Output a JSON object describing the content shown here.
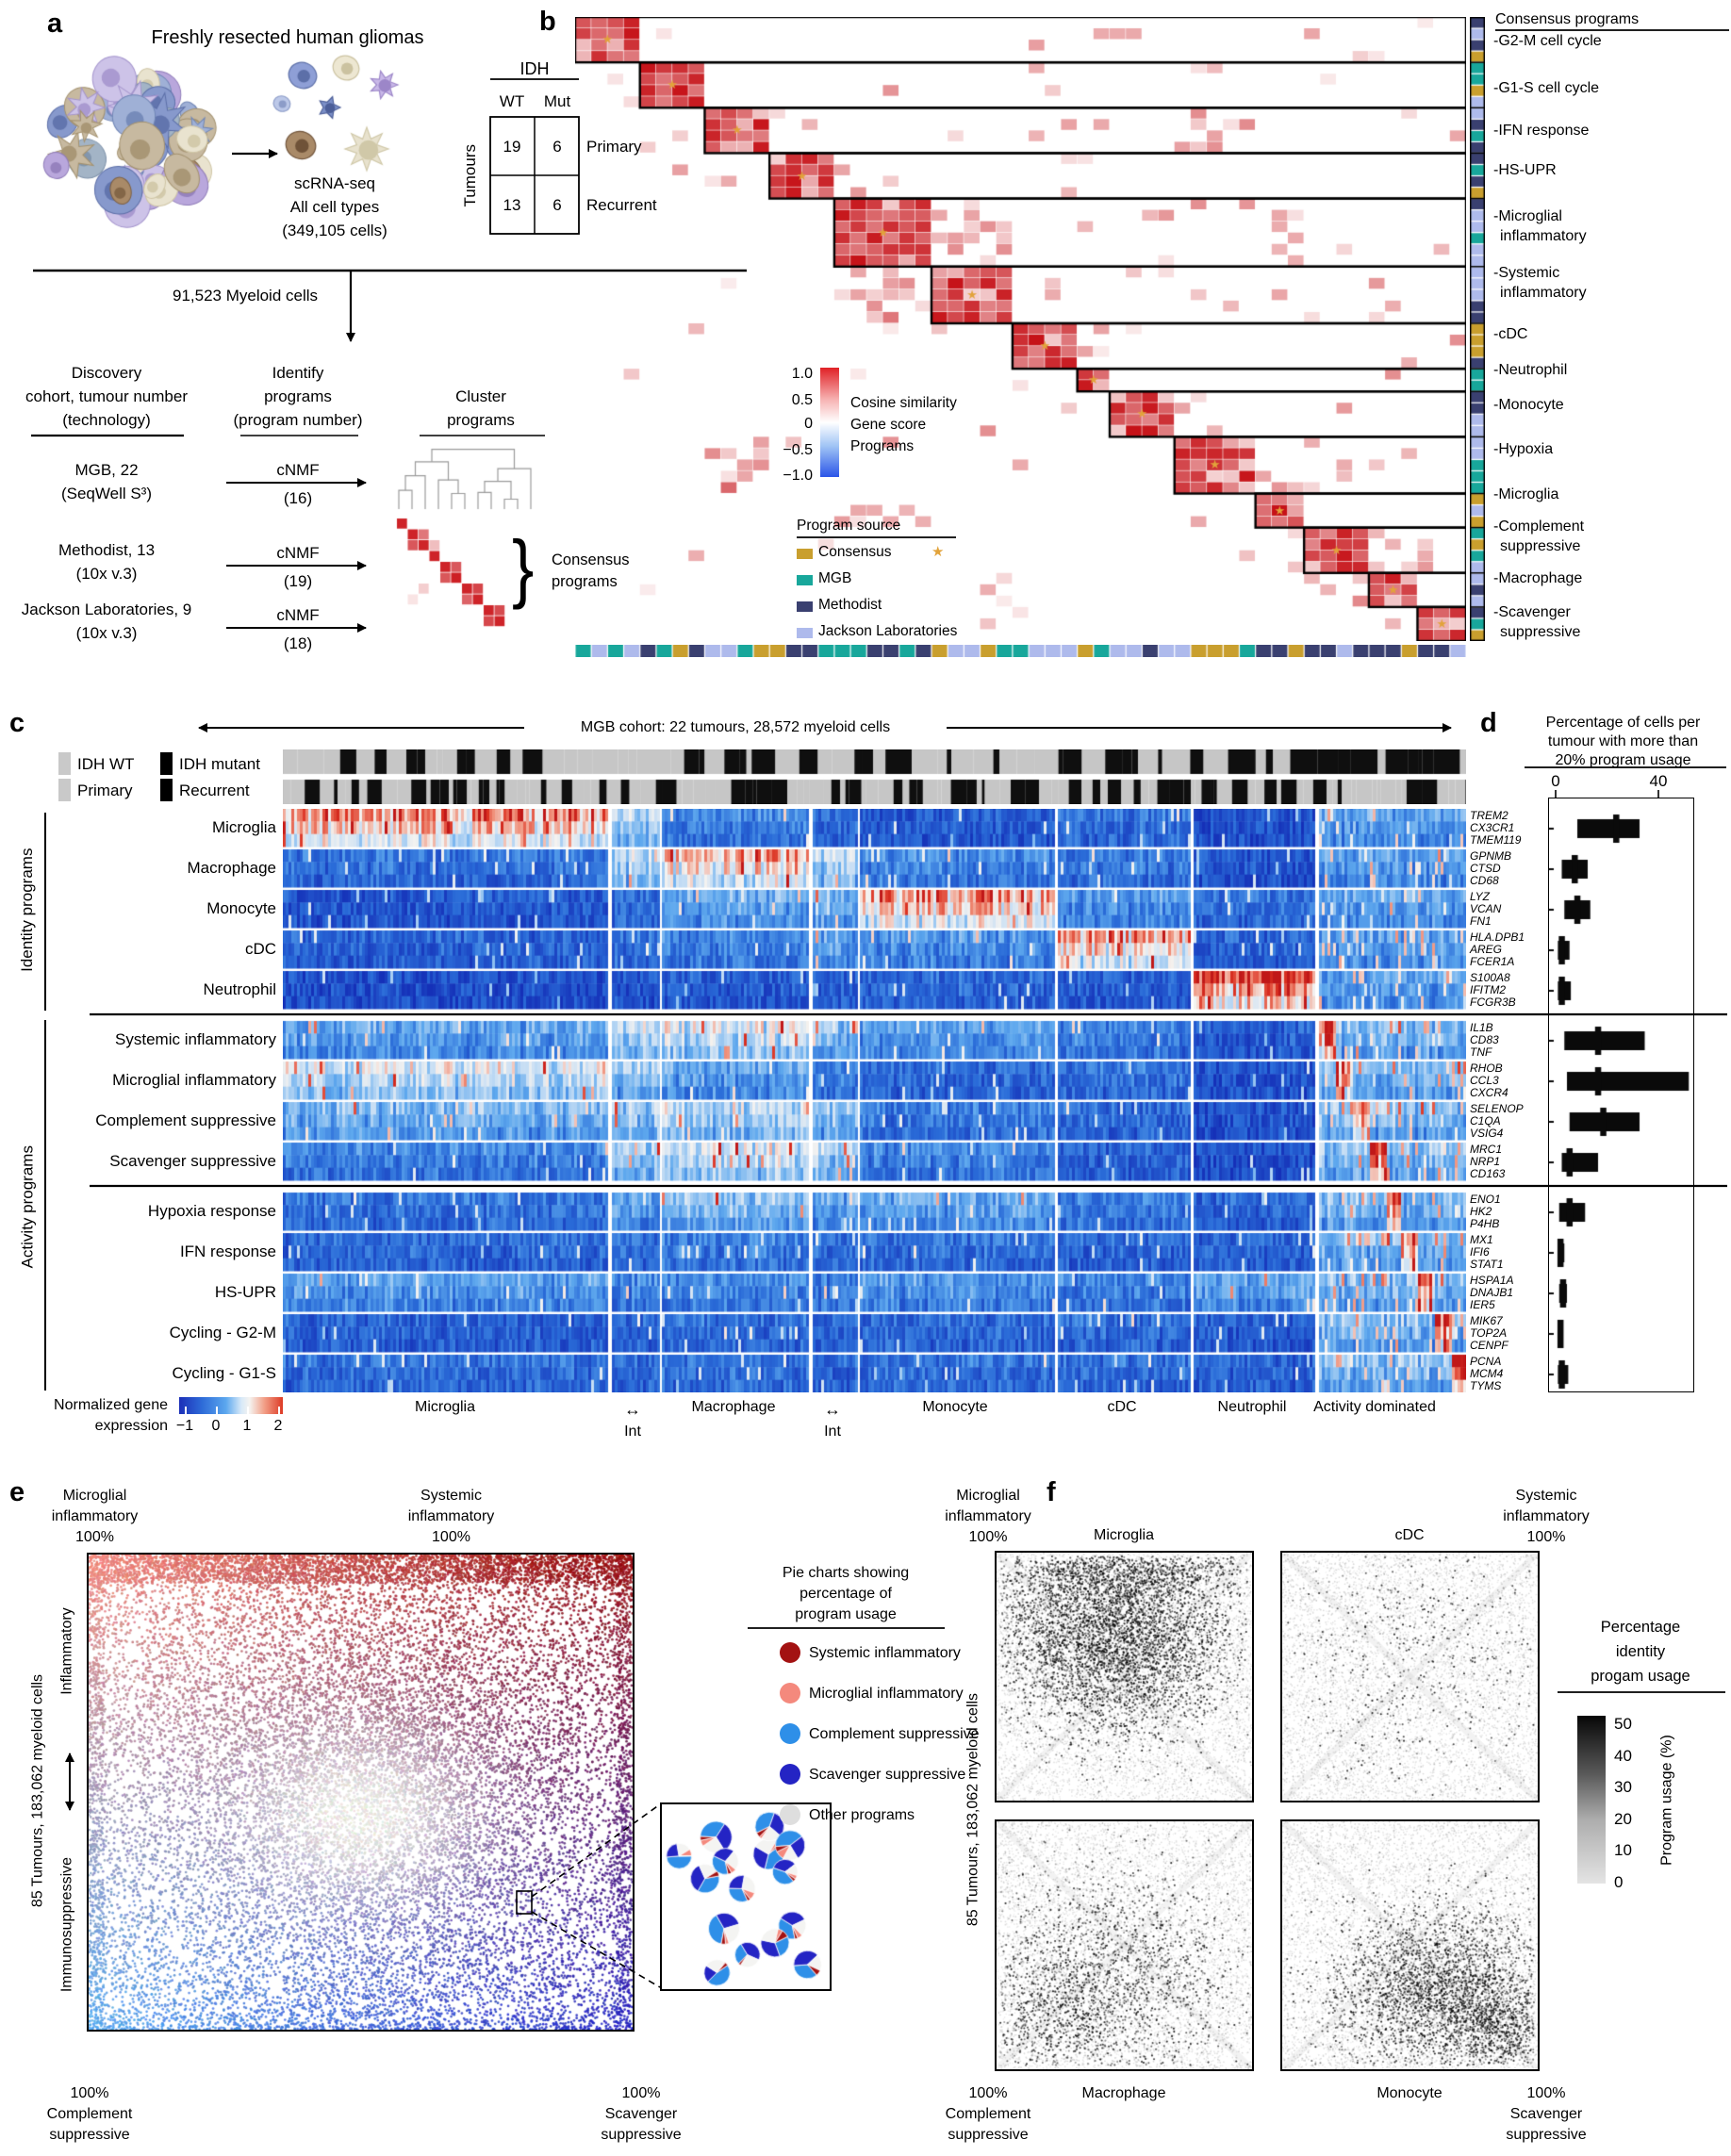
{
  "panel_a": {
    "label": "a",
    "title": "Freshly resected human gliomas",
    "scrna_lines": [
      "scRNA-seq",
      "All cell types",
      "(349,105 cells)"
    ],
    "table": {
      "header": "IDH",
      "cols": [
        "WT",
        "Mut"
      ],
      "row_axis": "Tumours",
      "rows": [
        {
          "wt": "19",
          "mut": "6",
          "type": "Primary"
        },
        {
          "wt": "13",
          "mut": "6",
          "type": "Recurrent"
        }
      ]
    },
    "myeloid_note": "91,523 Myeloid cells",
    "columns": {
      "discovery": [
        "Discovery",
        "cohort, tumour number",
        "(technology)"
      ],
      "identify": [
        "Identify",
        "programs",
        "(program number)"
      ],
      "cluster": [
        "Cluster",
        "programs"
      ]
    },
    "cohorts": [
      {
        "name": "MGB, 22",
        "tech": "(SeqWell S³)",
        "method": "cNMF",
        "programs": "(16)"
      },
      {
        "name": "Methodist, 13",
        "tech": "(10x v.3)",
        "method": "cNMF",
        "programs": "(19)"
      },
      {
        "name": "Jackson Laboratories, 9",
        "tech": "(10x v.3)",
        "method": "cNMF",
        "programs": "(18)"
      }
    ],
    "consensus_label": [
      "Consensus",
      "programs"
    ]
  },
  "panel_b": {
    "label": "b",
    "colorbar": {
      "ticks": [
        "1.0",
        "0.5",
        "0",
        "−0.5",
        "−1.0"
      ],
      "lines": [
        "Cosine similarity",
        "Gene score",
        "Programs"
      ]
    },
    "source_legend": {
      "title": "Program source",
      "items": [
        {
          "label": "Consensus",
          "color": "#C99F2E"
        },
        {
          "label": "MGB",
          "color": "#18A79B"
        },
        {
          "label": "Methodist",
          "color": "#3A4070"
        },
        {
          "label": "Jackson Laboratories",
          "color": "#AEBAEC"
        }
      ]
    },
    "star_color": "#E2A33B",
    "heat_color": "#CB181D",
    "consensus_header": "Consensus programs",
    "programs": [
      "G2-M cell cycle",
      "G1-S cell cycle",
      "IFN response",
      "HS-UPR",
      "Microglial inflammatory",
      "Systemic inflammatory",
      "cDC",
      "Neutrophil",
      "Monocyte",
      "Hypoxia",
      "Microglia",
      "Complement suppressive",
      "Macrophage",
      "Scavenger suppressive"
    ]
  },
  "panel_c": {
    "label": "c",
    "title": "MGB cohort: 22 tumours, 28,572 myeloid cells",
    "status_legend": [
      {
        "label": "IDH WT",
        "color": "#C9C9C9"
      },
      {
        "label": "IDH mutant",
        "color": "#000000"
      },
      {
        "label": "Primary",
        "color": "#C9C9C9"
      },
      {
        "label": "Recurrent",
        "color": "#000000"
      }
    ],
    "row_groups": [
      "Identity programs",
      "Activity programs"
    ],
    "rows": [
      "Microglia",
      "Macrophage",
      "Monocyte",
      "cDC",
      "Neutrophil",
      "Systemic inflammatory",
      "Microglial inflammatory",
      "Complement suppressive",
      "Scavenger suppressive",
      "Hypoxia response",
      "IFN response",
      "HS-UPR",
      "Cycling - G2-M",
      "Cycling - G1-S"
    ],
    "genes": [
      [
        "TREM2",
        "CX3CR1",
        "TMEM119"
      ],
      [
        "GPNMB",
        "CTSD",
        "CD68"
      ],
      [
        "LYZ",
        "VCAN",
        "FN1"
      ],
      [
        "HLA.DPB1",
        "AREG",
        "FCER1A"
      ],
      [
        "S100A8",
        "IFITM2",
        "FCGR3B"
      ],
      [
        "IL1B",
        "CD83",
        "TNF"
      ],
      [
        "RHOB",
        "CCL3",
        "CXCR4"
      ],
      [
        "SELENOP",
        "C1QA",
        "VSIG4"
      ],
      [
        "MRC1",
        "NRP1",
        "CD163"
      ],
      [
        "ENO1",
        "HK2",
        "P4HB"
      ],
      [
        "MX1",
        "IFI6",
        "STAT1"
      ],
      [
        "HSPA1A",
        "DNAJB1",
        "IER5"
      ],
      [
        "MIK67",
        "TOP2A",
        "CENPF"
      ],
      [
        "PCNA",
        "MCM4",
        "TYMS"
      ]
    ],
    "col_groups": [
      "Microglia",
      "Int",
      "Macrophage",
      "Int",
      "Monocyte",
      "cDC",
      "Neutrophil",
      "Activity dominated"
    ],
    "colorbar": {
      "label_lines": [
        "Normalized gene",
        "expression"
      ],
      "ticks": [
        "−1",
        "0",
        "1",
        "2"
      ]
    }
  },
  "panel_d": {
    "label": "d",
    "title_lines": [
      "Percentage of cells per",
      "tumour with more than",
      "20% program usage"
    ],
    "axis_ticks": [
      "0",
      "40"
    ],
    "chart_data": {
      "type": "boxplot",
      "xlabel": "Percentage of cells per tumour with more than 20% program usage",
      "xlim": [
        0,
        54
      ],
      "programs": [
        "Microglia",
        "Macrophage",
        "Monocyte",
        "cDC",
        "Neutrophil",
        "Systemic inflammatory",
        "Microglial inflammatory",
        "Complement suppressive",
        "Scavenger suppressive",
        "Hypoxia response",
        "IFN response",
        "HS-UPR",
        "Cycling - G2-M",
        "Cycling - G1-S"
      ],
      "boxes_q1_median_q3": [
        [
          8,
          23,
          32
        ],
        [
          2,
          7,
          12
        ],
        [
          3,
          8,
          13
        ],
        [
          0.5,
          2,
          5
        ],
        [
          0.5,
          2,
          5.5
        ],
        [
          3,
          16,
          34
        ],
        [
          4,
          16,
          51
        ],
        [
          5,
          18,
          32
        ],
        [
          2,
          5,
          16
        ],
        [
          1,
          5,
          11
        ],
        [
          0.5,
          1.5,
          3
        ],
        [
          1,
          2.5,
          4
        ],
        [
          0.5,
          1.5,
          2.5
        ],
        [
          0.5,
          2,
          4.5
        ]
      ]
    }
  },
  "panel_e": {
    "label": "e",
    "corner_labels": {
      "top_left": [
        "Microglial",
        "inflammatory",
        "100%"
      ],
      "top_right": [
        "Systemic",
        "inflammatory",
        "100%"
      ],
      "bottom_left": [
        "100%",
        "Complement",
        "suppressive"
      ],
      "bottom_right": [
        "100%",
        "Scavenger",
        "suppressive"
      ]
    },
    "y_axis": {
      "cells": "85 Tumours, 183,062 myeloid cells",
      "top": "Inflammatory",
      "bottom": "Immunosuppressive"
    },
    "corner_colors": {
      "top_left": "#F4897D",
      "top_right": "#9E1212",
      "bottom_left": "#55A8F0",
      "bottom_right": "#2424C4",
      "center": "#E8E6E2"
    },
    "legend": {
      "title_lines": [
        "Pie charts showing",
        "percentage of",
        "program usage"
      ],
      "items": [
        {
          "label": "Systemic inflammatory",
          "color": "#A31212"
        },
        {
          "label": "Microglial inflammatory",
          "color": "#F4897D"
        },
        {
          "label": "Complement suppressive",
          "color": "#2E8FE8"
        },
        {
          "label": "Scavenger suppressive",
          "color": "#2424C4"
        },
        {
          "label": "Other programs",
          "color": "#DEDEDE"
        }
      ]
    }
  },
  "panel_f": {
    "label": "f",
    "corner_labels": {
      "top_left": [
        "Microglial",
        "inflammatory",
        "100%"
      ],
      "top_right": [
        "Systemic",
        "inflammatory",
        "100%"
      ],
      "bottom_left": [
        "100%",
        "Complement",
        "suppressive"
      ],
      "bottom_right": [
        "100%",
        "Scavenger",
        "suppressive"
      ]
    },
    "plots": [
      "Microglia",
      "cDC",
      "Macrophage",
      "Monocyte"
    ],
    "y_axis": "85 Tumours, 183,062 myeloid cells",
    "colorbar": {
      "title_lines": [
        "Percentage",
        "identity",
        "progam usage"
      ],
      "axis_label": "Program usage (%)",
      "ticks": [
        "50",
        "40",
        "30",
        "20",
        "10",
        "0"
      ]
    }
  }
}
